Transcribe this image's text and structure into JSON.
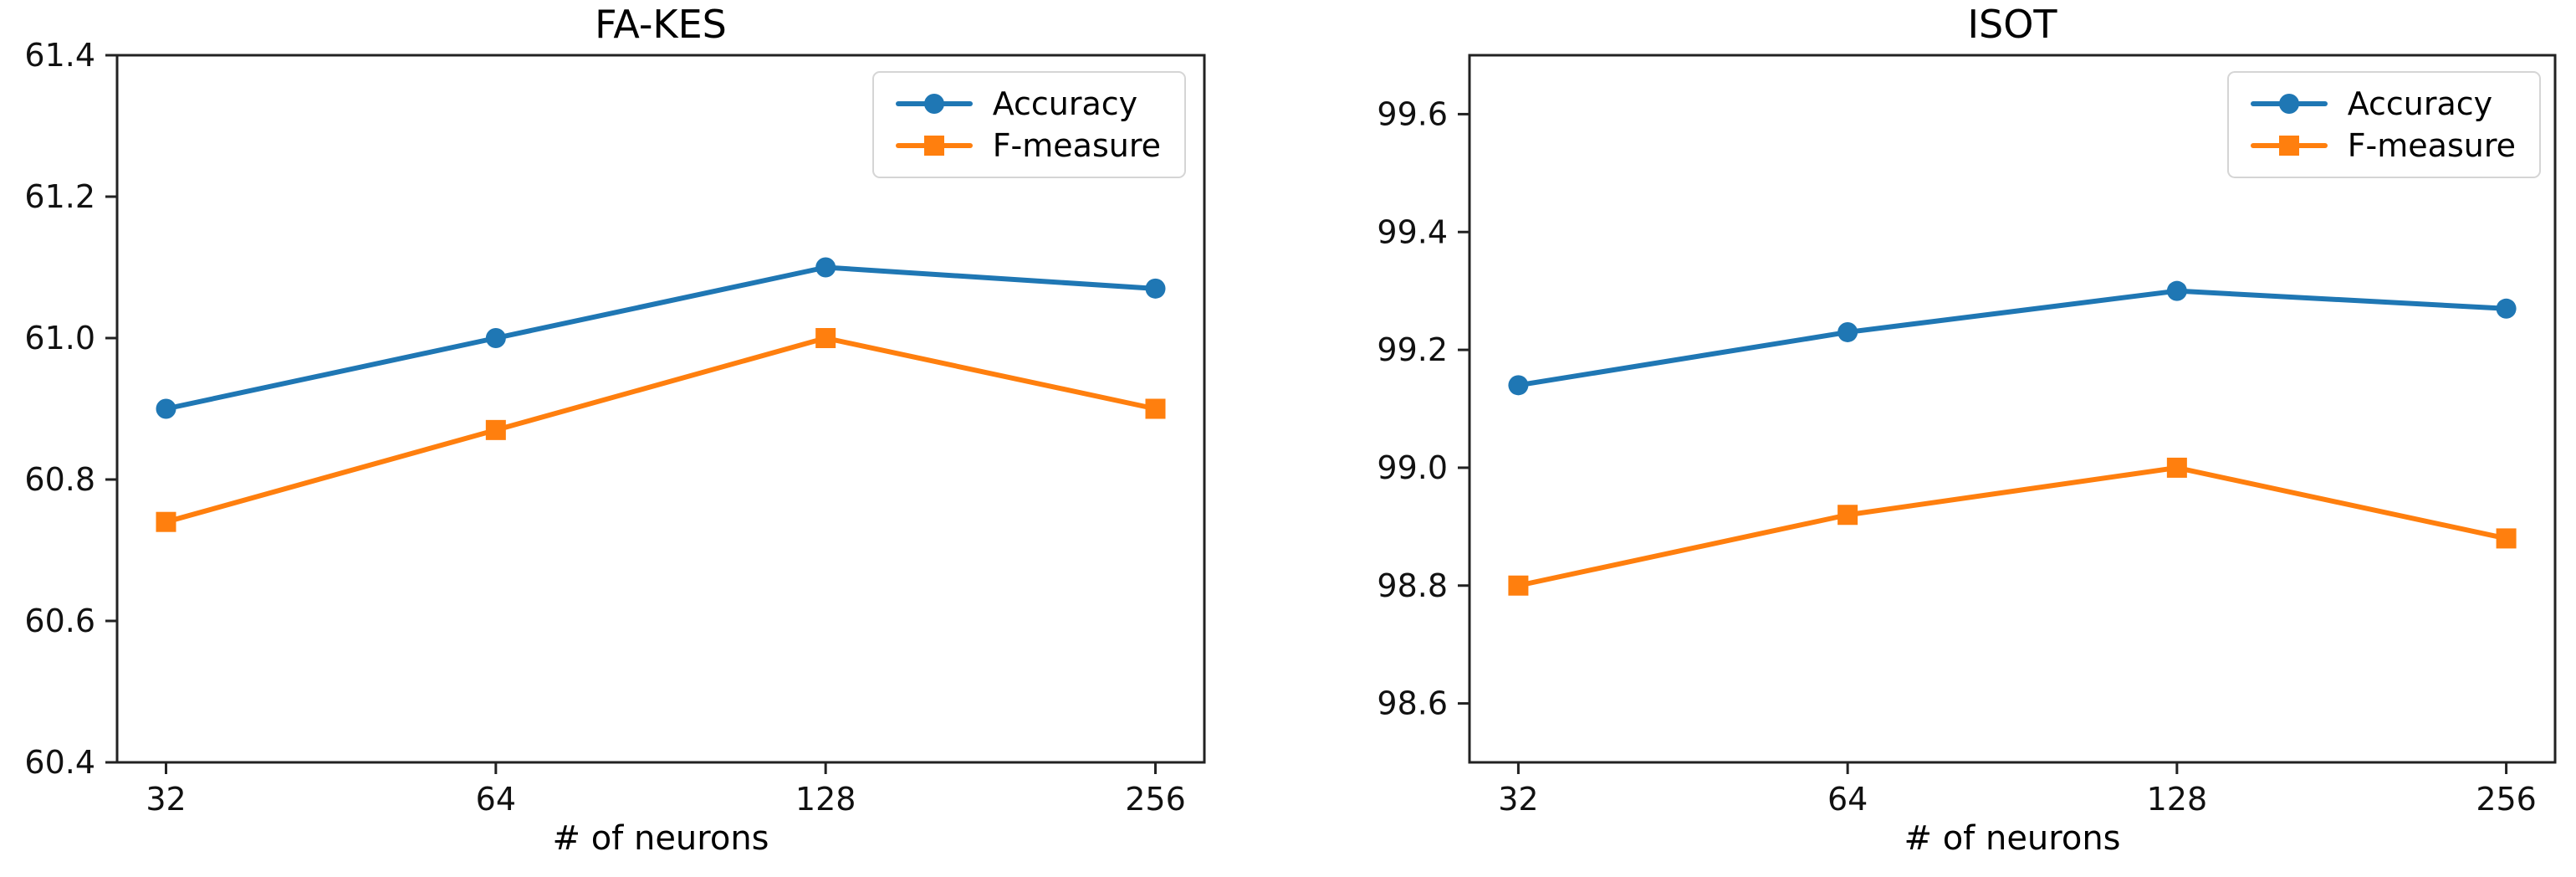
{
  "figure": {
    "background": "#ffffff"
  },
  "chart_data": [
    {
      "type": "line",
      "title": "FA-KES",
      "xlabel": "# of neurons",
      "ylabel": "",
      "categories": [
        "32",
        "64",
        "128",
        "256"
      ],
      "ylim": [
        60.4,
        61.4
      ],
      "yticks": [
        60.4,
        60.6,
        60.8,
        61.0,
        61.2,
        61.4
      ],
      "ytick_labels": [
        "60.4",
        "60.6",
        "60.8",
        "61.0",
        "61.2",
        "61.4"
      ],
      "grid": false,
      "legend": {
        "position": "upper-right"
      },
      "series": [
        {
          "name": "Accuracy",
          "marker": "circle",
          "color": "#1f77b4",
          "values": [
            60.9,
            61.0,
            61.1,
            61.07
          ]
        },
        {
          "name": "F-measure",
          "marker": "square",
          "color": "#ff7f0e",
          "values": [
            60.74,
            60.87,
            61.0,
            60.9
          ]
        }
      ]
    },
    {
      "type": "line",
      "title": "ISOT",
      "xlabel": "# of neurons",
      "ylabel": "",
      "categories": [
        "32",
        "64",
        "128",
        "256"
      ],
      "ylim": [
        98.5,
        99.7
      ],
      "yticks": [
        98.6,
        98.8,
        99.0,
        99.2,
        99.4,
        99.6
      ],
      "ytick_labels": [
        "98.6",
        "98.8",
        "99.0",
        "99.2",
        "99.4",
        "99.6"
      ],
      "grid": false,
      "legend": {
        "position": "upper-right"
      },
      "series": [
        {
          "name": "Accuracy",
          "marker": "circle",
          "color": "#1f77b4",
          "values": [
            99.14,
            99.23,
            99.3,
            99.27
          ]
        },
        {
          "name": "F-measure",
          "marker": "square",
          "color": "#ff7f0e",
          "values": [
            98.8,
            98.92,
            99.0,
            98.88
          ]
        }
      ]
    }
  ]
}
